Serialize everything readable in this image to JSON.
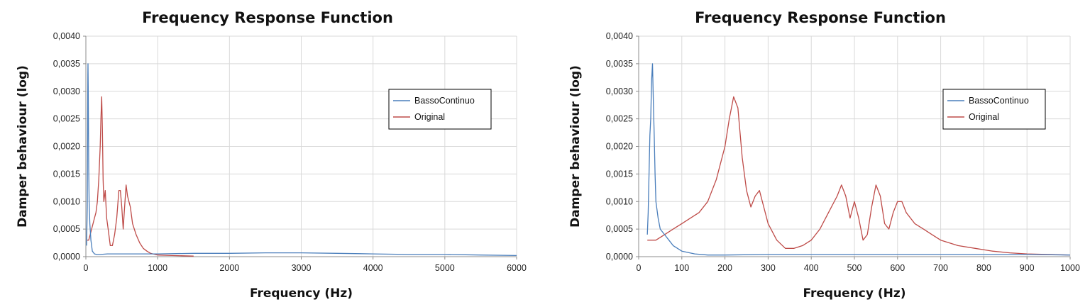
{
  "chart_data": [
    {
      "type": "line",
      "title": "Frequency Response Function",
      "xlabel": "Frequency (Hz)",
      "ylabel": "Damper behaviour (log)",
      "xlim": [
        0,
        6000
      ],
      "ylim": [
        0,
        0.004
      ],
      "x_ticks": [
        "0",
        "1000",
        "2000",
        "3000",
        "4000",
        "5000",
        "6000"
      ],
      "y_ticks": [
        "0,0000",
        "0,0005",
        "0,0010",
        "0,0015",
        "0,0020",
        "0,0025",
        "0,0030",
        "0,0035",
        "0,0040"
      ],
      "grid": true,
      "legend_position": "top-right",
      "series": [
        {
          "name": "BassoContinuo",
          "color": "#4a7ebb",
          "x": [
            10,
            20,
            25,
            28,
            30,
            33,
            36,
            40,
            45,
            55,
            70,
            90,
            120,
            150,
            200,
            300,
            500,
            1000,
            1500,
            2000,
            2500,
            3000,
            3500,
            4000,
            4500,
            5000,
            5500,
            6000
          ],
          "y": [
            0.0002,
            0.0009,
            0.0025,
            0.0033,
            0.0035,
            0.0031,
            0.0025,
            0.0016,
            0.001,
            0.0006,
            0.0003,
            0.0001,
            5e-05,
            4e-05,
            4e-05,
            5e-05,
            5e-05,
            5e-05,
            6e-05,
            6e-05,
            7e-05,
            7e-05,
            6e-05,
            5e-05,
            4e-05,
            4e-05,
            3e-05,
            2e-05
          ]
        },
        {
          "name": "Original",
          "color": "#be4b48",
          "x": [
            20,
            40,
            60,
            80,
            100,
            120,
            140,
            160,
            180,
            200,
            210,
            220,
            230,
            240,
            250,
            270,
            290,
            310,
            340,
            370,
            400,
            430,
            460,
            480,
            500,
            520,
            540,
            560,
            580,
            600,
            620,
            650,
            700,
            750,
            800,
            850,
            900,
            1000,
            1200,
            1500
          ],
          "y": [
            0.0003,
            0.0003,
            0.0004,
            0.0005,
            0.0006,
            0.0007,
            0.0008,
            0.001,
            0.0014,
            0.002,
            0.0025,
            0.0029,
            0.0023,
            0.0014,
            0.001,
            0.0012,
            0.0007,
            0.0005,
            0.0002,
            0.0002,
            0.0004,
            0.0007,
            0.0012,
            0.0012,
            0.0009,
            0.0005,
            0.0009,
            0.0013,
            0.0011,
            0.001,
            0.0009,
            0.0006,
            0.0004,
            0.00025,
            0.00015,
            0.0001,
            6e-05,
            3e-05,
            2e-05,
            1e-05
          ]
        }
      ]
    },
    {
      "type": "line",
      "title": "Frequency Response Function",
      "xlabel": "Frequency (Hz)",
      "ylabel": "Damper behaviour (log)",
      "xlim": [
        0,
        1000
      ],
      "ylim": [
        0,
        0.004
      ],
      "x_ticks": [
        "0",
        "100",
        "200",
        "300",
        "400",
        "500",
        "600",
        "700",
        "800",
        "900",
        "1000"
      ],
      "y_ticks": [
        "0,0000",
        "0,0005",
        "0,0010",
        "0,0015",
        "0,0020",
        "0,0025",
        "0,0030",
        "0,0035",
        "0,0040"
      ],
      "grid": true,
      "legend_position": "top-right",
      "series": [
        {
          "name": "BassoContinuo",
          "color": "#4a7ebb",
          "x": [
            20,
            22,
            24,
            26,
            28,
            30,
            32,
            34,
            36,
            38,
            40,
            45,
            50,
            60,
            70,
            80,
            100,
            130,
            160,
            200,
            300,
            400,
            500,
            600,
            700,
            800,
            900,
            1000
          ],
          "y": [
            0.0004,
            0.0008,
            0.0015,
            0.0022,
            0.0025,
            0.0032,
            0.0035,
            0.0028,
            0.0022,
            0.0015,
            0.001,
            0.0007,
            0.0005,
            0.0004,
            0.0003,
            0.0002,
            0.0001,
            5e-05,
            3e-05,
            3e-05,
            4e-05,
            4e-05,
            4e-05,
            4e-05,
            4e-05,
            4e-05,
            4e-05,
            3e-05
          ]
        },
        {
          "name": "Original",
          "color": "#be4b48",
          "x": [
            20,
            40,
            60,
            80,
            100,
            120,
            140,
            160,
            180,
            200,
            210,
            220,
            230,
            240,
            250,
            260,
            270,
            280,
            290,
            300,
            320,
            340,
            360,
            380,
            400,
            420,
            440,
            460,
            470,
            480,
            490,
            500,
            510,
            520,
            530,
            540,
            550,
            560,
            570,
            580,
            590,
            600,
            610,
            620,
            640,
            660,
            680,
            700,
            740,
            780,
            820,
            860,
            900,
            950,
            1000
          ],
          "y": [
            0.0003,
            0.0003,
            0.0004,
            0.0005,
            0.0006,
            0.0007,
            0.0008,
            0.001,
            0.0014,
            0.002,
            0.0025,
            0.0029,
            0.0027,
            0.0018,
            0.0012,
            0.0009,
            0.0011,
            0.0012,
            0.0009,
            0.0006,
            0.0003,
            0.00015,
            0.00015,
            0.0002,
            0.0003,
            0.0005,
            0.0008,
            0.0011,
            0.0013,
            0.0011,
            0.0007,
            0.001,
            0.0007,
            0.0003,
            0.0004,
            0.0009,
            0.0013,
            0.0011,
            0.0006,
            0.0005,
            0.0008,
            0.001,
            0.001,
            0.0008,
            0.0006,
            0.0005,
            0.0004,
            0.0003,
            0.0002,
            0.00015,
            0.0001,
            7e-05,
            5e-05,
            4e-05,
            3e-05
          ]
        }
      ]
    }
  ]
}
